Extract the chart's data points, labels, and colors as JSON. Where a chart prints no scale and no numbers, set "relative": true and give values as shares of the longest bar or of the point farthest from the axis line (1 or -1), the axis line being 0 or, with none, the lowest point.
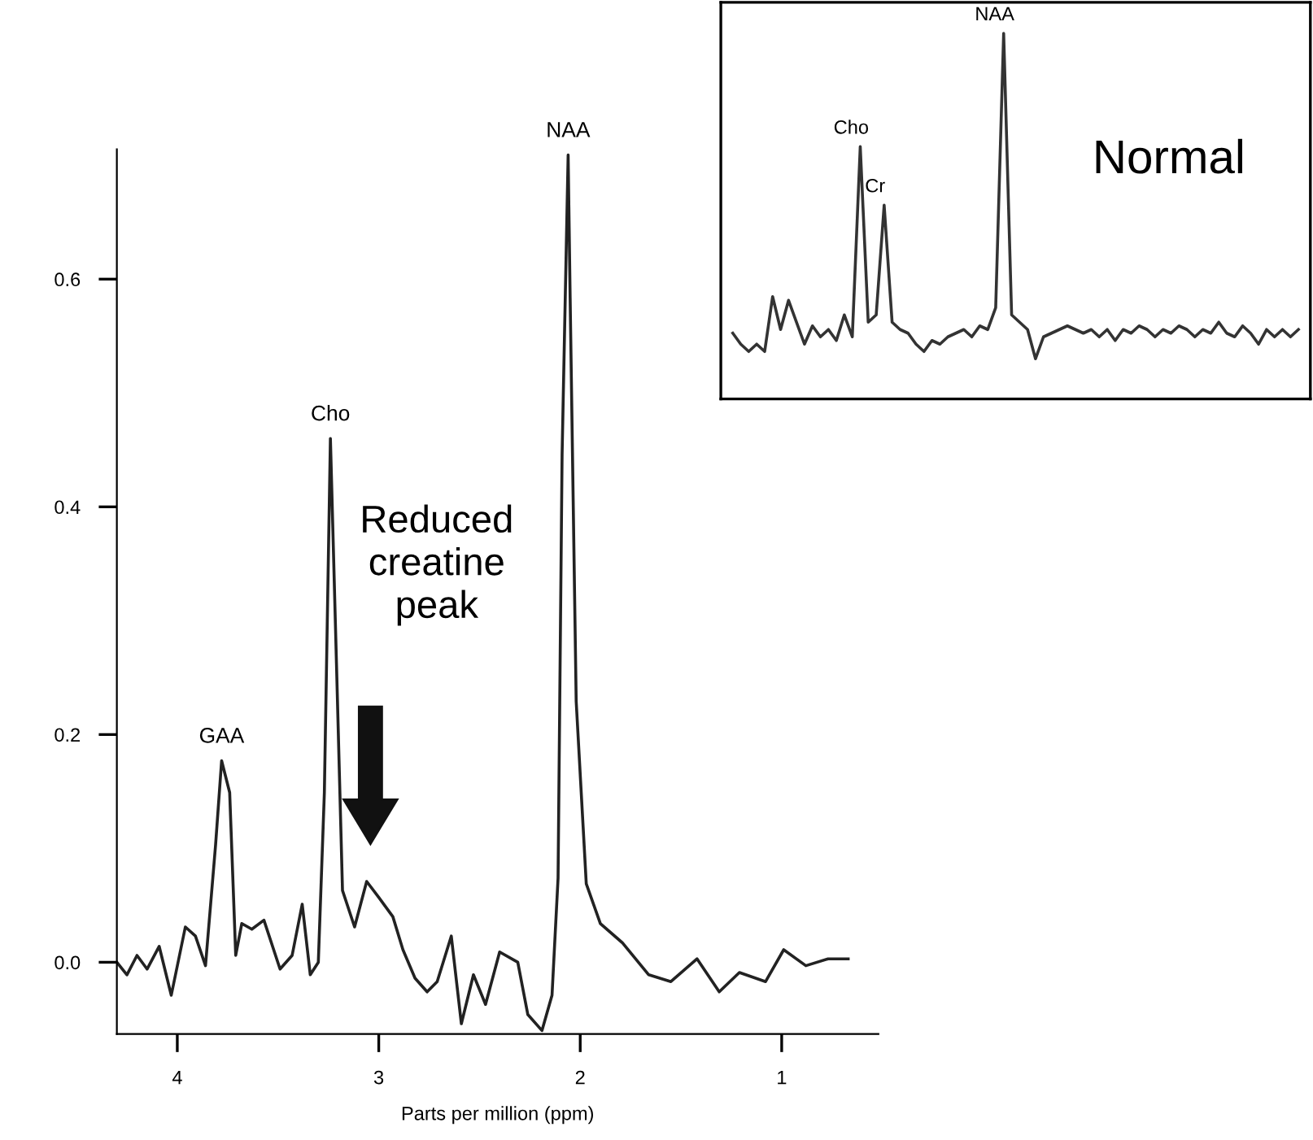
{
  "chart_data": [
    {
      "type": "line",
      "xlabel": "Parts per million (ppm)",
      "x": [
        4.3,
        4.25,
        4.2,
        4.15,
        4.09,
        4.03,
        3.96,
        3.91,
        3.86,
        3.81,
        3.78,
        3.74,
        3.71,
        3.68,
        3.63,
        3.57,
        3.49,
        3.43,
        3.38,
        3.34,
        3.3,
        3.27,
        3.24,
        3.21,
        3.18,
        3.12,
        3.06,
        3.0,
        2.93,
        2.88,
        2.82,
        2.76,
        2.71,
        2.64,
        2.59,
        2.53,
        2.47,
        2.4,
        2.31,
        2.26,
        2.19,
        2.14,
        2.11,
        2.09,
        2.06,
        2.05,
        2.02,
        1.97,
        1.9,
        1.79,
        1.66,
        1.55,
        1.42,
        1.31,
        1.21,
        1.08,
        0.99,
        0.88,
        0.77,
        0.67
      ],
      "series": [
        {
          "color": "#222222",
          "values": [
            0.0,
            -0.011,
            0.006,
            -0.006,
            0.014,
            -0.029,
            0.031,
            0.023,
            -0.003,
            0.103,
            0.177,
            0.149,
            0.006,
            0.034,
            0.029,
            0.037,
            -0.006,
            0.006,
            0.051,
            -0.011,
            0.0,
            0.149,
            0.46,
            0.263,
            0.063,
            0.031,
            0.071,
            0.057,
            0.04,
            0.011,
            -0.014,
            -0.026,
            -0.017,
            0.023,
            -0.054,
            -0.011,
            -0.037,
            0.009,
            0.0,
            -0.046,
            -0.06,
            -0.029,
            0.074,
            0.446,
            0.709,
            0.583,
            0.229,
            0.069,
            0.034,
            0.017,
            -0.011,
            -0.017,
            0.003,
            -0.026,
            -0.009,
            -0.017,
            0.011,
            -0.003,
            0.003,
            0.003
          ]
        }
      ],
      "xlim": [
        4.3,
        0.52
      ],
      "ylim": [
        -0.063,
        0.714
      ],
      "xticks": [
        4,
        3,
        2,
        1
      ],
      "yticks": [
        {
          "value": 0,
          "label": "0.0"
        },
        0.2,
        0.4,
        0.6
      ],
      "grid": false,
      "legend": false,
      "annotations": [
        {
          "text": "GAA",
          "x": 3.78,
          "y": 0.177
        },
        {
          "text": "Cho",
          "x": 3.24,
          "y": 0.46
        },
        {
          "text": "NAA",
          "x": 2.06,
          "y": 0.709
        },
        "Reduced\ncreatine\npeak"
      ]
    },
    {
      "type": "line",
      "relative": true,
      "categories": [
        null,
        null,
        null,
        null,
        null,
        null,
        null,
        null,
        null,
        null,
        null,
        null,
        null,
        null,
        null,
        null,
        null,
        null,
        null,
        null,
        null,
        null,
        null,
        null,
        null,
        null,
        null,
        null,
        null,
        null,
        null,
        null,
        null,
        null,
        null,
        null,
        null,
        null,
        null,
        null,
        null,
        null,
        null,
        null,
        null,
        null,
        null,
        null,
        null,
        null,
        null,
        null,
        null,
        null,
        null,
        null,
        null,
        null,
        null,
        null,
        null,
        null,
        null,
        null,
        null,
        null,
        null,
        null,
        null,
        null,
        null,
        null
      ],
      "series": [
        {
          "color": "#333333",
          "values": [
            0.18,
            0.15,
            0.13,
            0.15,
            0.13,
            0.28,
            0.19,
            0.27,
            0.21,
            0.15,
            0.2,
            0.17,
            0.19,
            0.16,
            0.23,
            0.17,
            0.69,
            0.21,
            0.23,
            0.53,
            0.21,
            0.19,
            0.18,
            0.15,
            0.13,
            0.16,
            0.15,
            0.17,
            0.18,
            0.19,
            0.17,
            0.2,
            0.19,
            0.25,
            1,
            0.23,
            0.21,
            0.19,
            0.11,
            0.17,
            0.18,
            0.19,
            0.2,
            0.19,
            0.18,
            0.19,
            0.17,
            0.19,
            0.16,
            0.19,
            0.18,
            0.2,
            0.19,
            0.17,
            0.19,
            0.18,
            0.2,
            0.19,
            0.17,
            0.19,
            0.18,
            0.21,
            0.18,
            0.17,
            0.2,
            0.18,
            0.15,
            0.19,
            0.17,
            0.19,
            0.17,
            0.19
          ]
        }
      ],
      "grid": false,
      "legend": false,
      "annotations": [
        "Cho",
        "Cr",
        "NAA",
        "Normal"
      ]
    }
  ]
}
